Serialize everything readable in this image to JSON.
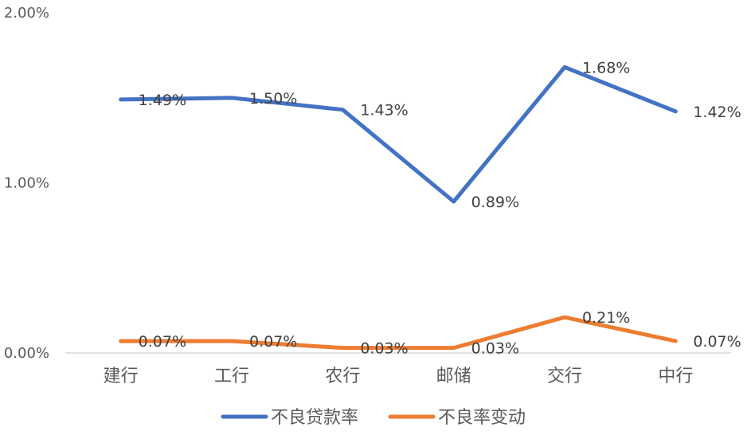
{
  "chart_data": {
    "type": "line",
    "categories": [
      "建行",
      "工行",
      "农行",
      "邮储",
      "交行",
      "中行"
    ],
    "ylim": [
      0,
      0.02
    ],
    "yticks": [
      {
        "value": 0,
        "label": "0.00%"
      },
      {
        "value": 0.01,
        "label": "1.00%"
      },
      {
        "value": 0.02,
        "label": "2.00%"
      }
    ],
    "grid": false,
    "legend_position": "bottom",
    "series": [
      {
        "name": "不良贷款率",
        "color": "#4472C4",
        "values": [
          0.0149,
          0.015,
          0.0143,
          0.0089,
          0.0168,
          0.0142
        ],
        "labels": [
          "1.49%",
          "1.50%",
          "1.43%",
          "0.89%",
          "1.68%",
          "1.42%"
        ]
      },
      {
        "name": "不良率变动",
        "color": "#ED7D31",
        "values": [
          0.0007,
          0.0007,
          0.0003,
          0.0003,
          0.0021,
          0.0007
        ],
        "labels": [
          "0.07%",
          "0.07%",
          "0.03%",
          "0.03%",
          "0.21%",
          "0.07%"
        ]
      }
    ]
  }
}
